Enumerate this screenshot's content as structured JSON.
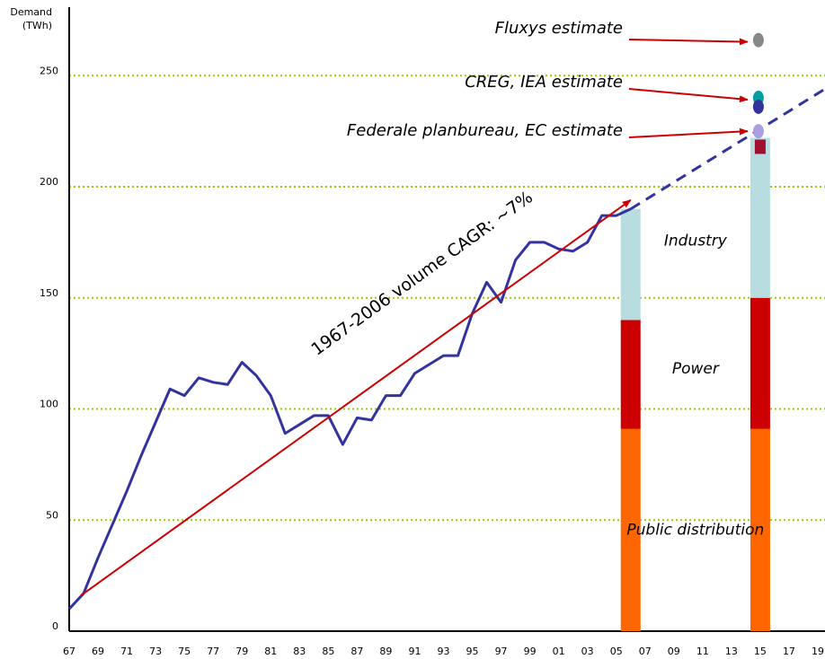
{
  "chart_data": {
    "type": "line",
    "y_label": "Demand",
    "y_unit": "(TWh)",
    "ylim": [
      0,
      280
    ],
    "yticks": [
      0,
      50,
      100,
      150,
      200,
      250
    ],
    "grid": true,
    "grid_color": "#99cc00",
    "xlim": [
      1967,
      2019.5
    ],
    "xticks": [
      {
        "value": 1967,
        "label": "67"
      },
      {
        "value": 1969,
        "label": "69"
      },
      {
        "value": 1971,
        "label": "71"
      },
      {
        "value": 1973,
        "label": "73"
      },
      {
        "value": 1975,
        "label": "75"
      },
      {
        "value": 1977,
        "label": "77"
      },
      {
        "value": 1979,
        "label": "79"
      },
      {
        "value": 1981,
        "label": "81"
      },
      {
        "value": 1983,
        "label": "83"
      },
      {
        "value": 1985,
        "label": "85"
      },
      {
        "value": 1987,
        "label": "87"
      },
      {
        "value": 1989,
        "label": "89"
      },
      {
        "value": 1991,
        "label": "91"
      },
      {
        "value": 1993,
        "label": "93"
      },
      {
        "value": 1995,
        "label": "95"
      },
      {
        "value": 1997,
        "label": "97"
      },
      {
        "value": 1999,
        "label": "99"
      },
      {
        "value": 2001,
        "label": "01"
      },
      {
        "value": 2003,
        "label": "03"
      },
      {
        "value": 2005,
        "label": "05"
      },
      {
        "value": 2007,
        "label": "07"
      },
      {
        "value": 2009,
        "label": "09"
      },
      {
        "value": 2011,
        "label": "11"
      },
      {
        "value": 2013,
        "label": "13"
      },
      {
        "value": 2015,
        "label": "15"
      },
      {
        "value": 2017,
        "label": "17"
      },
      {
        "value": 2019,
        "label": "19"
      }
    ],
    "x": [
      1967,
      1968,
      1969,
      1970,
      1971,
      1972,
      1973,
      1974,
      1975,
      1976,
      1977,
      1978,
      1979,
      1980,
      1981,
      1982,
      1983,
      1984,
      1985,
      1986,
      1987,
      1988,
      1989,
      1990,
      1991,
      1992,
      1993,
      1994,
      1995,
      1996,
      1997,
      1998,
      1999,
      2000,
      2001,
      2002,
      2003,
      2004,
      2005,
      2006
    ],
    "series": [
      {
        "color": "#3333a0",
        "values": [
          10,
          17,
          33,
          48,
          63,
          79,
          94,
          109,
          106,
          114,
          112,
          111,
          121,
          115,
          106,
          89,
          93,
          97,
          97,
          84,
          96,
          95,
          106,
          106,
          116,
          120,
          124,
          124,
          143,
          157,
          148,
          167,
          175,
          175,
          172,
          171,
          175,
          187,
          187,
          190
        ]
      }
    ],
    "projection": {
      "x": [
        2006,
        2019.5
      ],
      "values": [
        190,
        244
      ],
      "color": "#3333a0",
      "dashed": true
    },
    "trend": {
      "label": "1967-2006 volume CAGR: ~7%",
      "x": [
        1967.8,
        2006
      ],
      "values": [
        16,
        194
      ],
      "color": "#cc0000"
    },
    "stacks": {
      "x": [
        2006,
        2015
      ],
      "series": [
        {
          "name": "Public distribution",
          "color": "#ff6600",
          "values": [
            91,
            91
          ]
        },
        {
          "name": "Power",
          "color": "#cc0000",
          "values": [
            49,
            59
          ]
        },
        {
          "name": "Industry",
          "color": "#b7dde0",
          "values": [
            50,
            72
          ]
        }
      ]
    },
    "estimates_x": 2015,
    "estimates": [
      {
        "label": "Fluxys estimate",
        "points": [
          {
            "value": 266,
            "color": "#888888"
          }
        ]
      },
      {
        "label": "CREG, IEA estimate",
        "points": [
          {
            "value": 240,
            "color": "#00a0a0"
          },
          {
            "value": 236,
            "color": "#333399"
          }
        ]
      },
      {
        "label": "Federale planbureau, EC estimate",
        "points": [
          {
            "value": 225,
            "color": "#aaa0e0"
          },
          {
            "value": 218,
            "color": "#a01030",
            "shape": "square"
          }
        ]
      }
    ]
  }
}
